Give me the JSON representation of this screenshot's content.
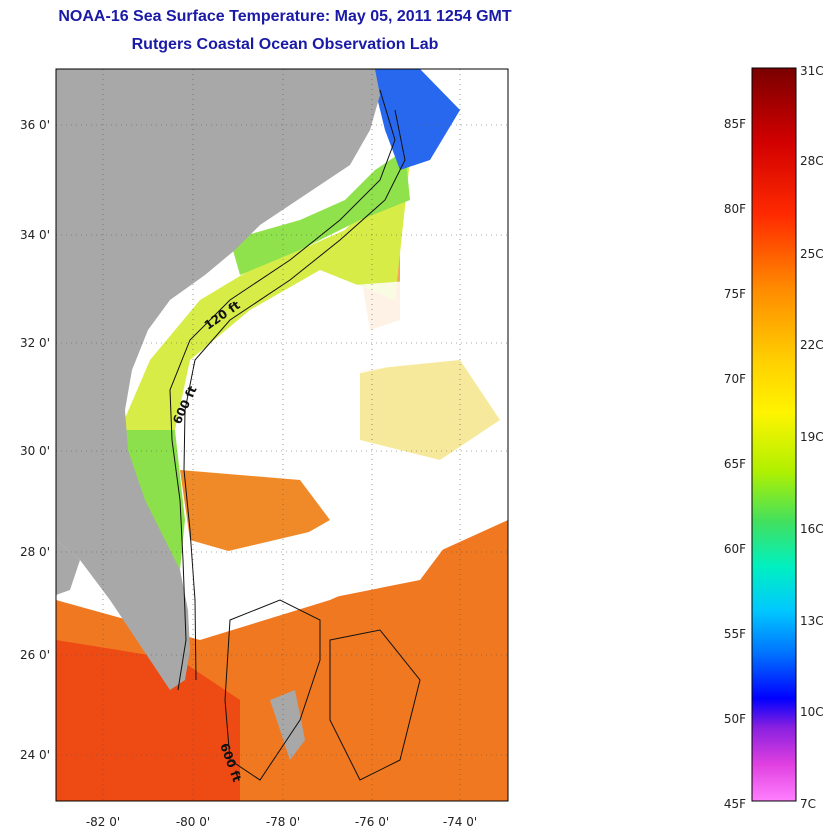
{
  "title_line1": "NOAA-16 Sea Surface Temperature:  May 05, 2011 1254 GMT",
  "title_line2": "Rutgers Coastal Ocean Observation Lab",
  "lat_labels": [
    "36 0'",
    "34 0'",
    "32 0'",
    "30 0'",
    "28 0'",
    "26 0'",
    "24 0'"
  ],
  "lon_labels": [
    "-82 0'",
    "-80 0'",
    "-78 0'",
    "-76 0'",
    "-74 0'"
  ],
  "contour_labels": [
    "120 ft",
    "600 ft",
    "600 ft"
  ],
  "colorbar": {
    "celsius_labels": [
      "31C",
      "28C",
      "25C",
      "22C",
      "19C",
      "16C",
      "13C",
      "10C",
      "7C"
    ],
    "fahrenheit_labels": [
      "85F",
      "80F",
      "75F",
      "70F",
      "65F",
      "60F",
      "55F",
      "50F",
      "45F"
    ],
    "colors": [
      "#7a0000",
      "#d10000",
      "#ff2a00",
      "#ff7a00",
      "#ffb000",
      "#fff000",
      "#c8ff00",
      "#60e040",
      "#00ffc8",
      "#00c8ff",
      "#0064ff",
      "#0000ff",
      "#9020e0",
      "#ff40d0",
      "#ff80ff"
    ]
  },
  "colors": {
    "land": "#a8a8a8",
    "title": "#1a1aa6",
    "orange_sst": "#f07820",
    "red_sst": "#f04010",
    "yellow_sst": "#f0e040",
    "green_sst": "#90e040",
    "cyan_sst": "#40d0a0",
    "blue_sst": "#2060f0"
  }
}
